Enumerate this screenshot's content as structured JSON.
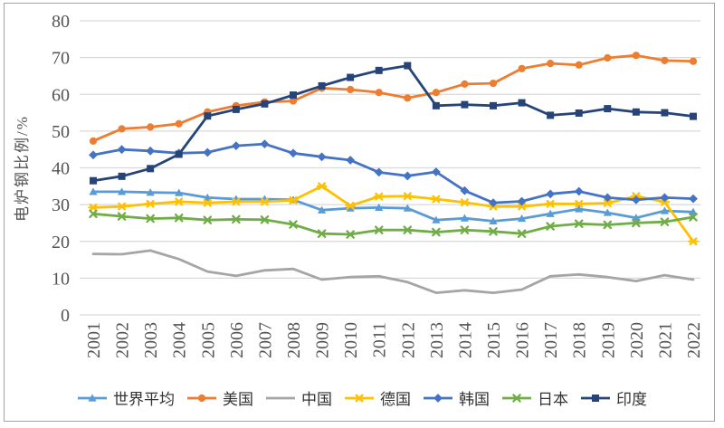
{
  "chart_data": {
    "type": "line",
    "title": "",
    "xlabel": "",
    "ylabel": "电炉钢比例/%",
    "ylim": [
      0,
      80
    ],
    "yticks": [
      0,
      10,
      20,
      30,
      40,
      50,
      60,
      70,
      80
    ],
    "grid": "horizontal",
    "legend_position": "bottom",
    "categories": [
      "2001",
      "2002",
      "2003",
      "2004",
      "2005",
      "2006",
      "2007",
      "2008",
      "2009",
      "2010",
      "2011",
      "2012",
      "2013",
      "2014",
      "2015",
      "2016",
      "2017",
      "2018",
      "2019",
      "2020",
      "2021",
      "2022"
    ],
    "series": [
      {
        "name": "世界平均",
        "color": "#5B9BD5",
        "marker": "triangle",
        "values": [
          33.5,
          33.5,
          33.3,
          33.2,
          31.9,
          31.5,
          31.5,
          31.3,
          28.5,
          29.0,
          29.2,
          29.0,
          25.8,
          26.3,
          25.5,
          26.2,
          27.5,
          28.8,
          27.8,
          26.4,
          28.3,
          28.0
        ]
      },
      {
        "name": "美国",
        "color": "#ED7D31",
        "marker": "circle",
        "values": [
          47.3,
          50.6,
          51.1,
          52.0,
          55.2,
          56.9,
          57.9,
          58.2,
          61.7,
          61.3,
          60.5,
          59.0,
          60.5,
          62.8,
          63.0,
          67.0,
          68.4,
          68.0,
          69.9,
          70.6,
          69.2,
          69.0
        ]
      },
      {
        "name": "中国",
        "color": "#A5A5A5",
        "marker": "none",
        "values": [
          16.6,
          16.5,
          17.5,
          15.2,
          11.8,
          10.6,
          12.1,
          12.5,
          9.6,
          10.3,
          10.5,
          8.9,
          6.0,
          6.7,
          6.0,
          6.9,
          10.5,
          11.0,
          10.3,
          9.2,
          10.8,
          9.6
        ]
      },
      {
        "name": "德国",
        "color": "#FFC000",
        "marker": "asterisk",
        "values": [
          29.2,
          29.5,
          30.2,
          30.8,
          30.5,
          30.8,
          30.8,
          31.2,
          35.0,
          29.7,
          32.2,
          32.3,
          31.5,
          30.6,
          29.5,
          29.5,
          30.2,
          30.2,
          30.4,
          32.3,
          30.7,
          20.0
        ]
      },
      {
        "name": "韩国",
        "color": "#4472C4",
        "marker": "diamond",
        "values": [
          43.5,
          45.0,
          44.6,
          44.0,
          44.2,
          46.0,
          46.5,
          44.0,
          43.0,
          42.1,
          38.8,
          37.8,
          38.9,
          33.8,
          30.5,
          30.9,
          32.9,
          33.6,
          31.9,
          31.3,
          31.9,
          31.6
        ]
      },
      {
        "name": "日本",
        "color": "#70AD47",
        "marker": "x",
        "values": [
          27.5,
          26.8,
          26.2,
          26.4,
          25.8,
          26.0,
          25.9,
          24.6,
          22.1,
          21.9,
          23.1,
          23.1,
          22.5,
          23.1,
          22.7,
          22.1,
          24.1,
          24.8,
          24.5,
          25.0,
          25.3,
          26.6
        ]
      },
      {
        "name": "印度",
        "color": "#264478",
        "marker": "square",
        "values": [
          36.5,
          37.7,
          39.8,
          43.7,
          54.1,
          55.9,
          57.4,
          59.8,
          62.3,
          64.6,
          66.5,
          67.8,
          56.9,
          57.2,
          56.9,
          57.7,
          54.3,
          54.9,
          56.1,
          55.2,
          55.0,
          54.0
        ]
      }
    ]
  },
  "colors": {
    "gridline": "#D9D9D9",
    "border": "#A3A3A3",
    "axis_text": "#545454",
    "legend_text": "#333333",
    "background": "#FFFFFF"
  }
}
